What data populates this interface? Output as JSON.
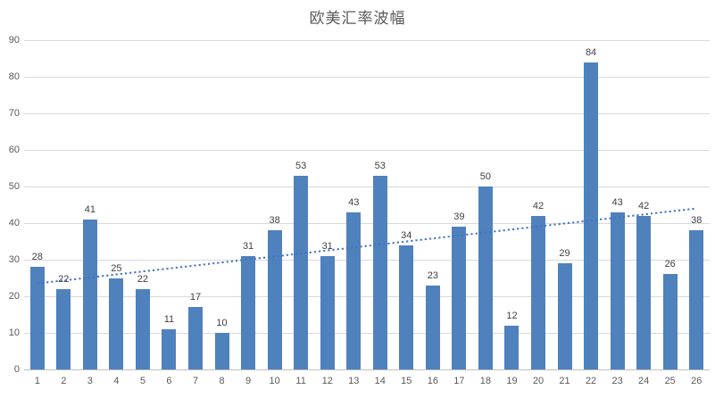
{
  "title": "欧美汇率波幅",
  "colors": {
    "bar": "#4F81BD",
    "trendline": "#4472C4",
    "gridline": "#D9D9D9",
    "axis_line": "#BFBFBF",
    "title_text": "#595959",
    "tick_text": "#595959",
    "value_label_text": "#404040",
    "background": "#FFFFFF"
  },
  "chart_data": {
    "type": "bar",
    "title": "欧美汇率波幅",
    "categories": [
      "1",
      "2",
      "3",
      "4",
      "5",
      "6",
      "7",
      "8",
      "9",
      "10",
      "11",
      "12",
      "13",
      "14",
      "15",
      "16",
      "17",
      "18",
      "19",
      "20",
      "21",
      "22",
      "23",
      "24",
      "25",
      "26"
    ],
    "values": [
      28,
      22,
      41,
      25,
      22,
      11,
      17,
      10,
      31,
      38,
      53,
      31,
      43,
      53,
      34,
      23,
      39,
      50,
      12,
      42,
      29,
      84,
      43,
      42,
      26,
      38
    ],
    "value_labels_shown": true,
    "xlabel": "",
    "ylabel": "",
    "ylim": [
      0,
      90
    ],
    "y_tick_step": 10,
    "y_tick_labels": [
      "0",
      "10",
      "20",
      "30",
      "40",
      "50",
      "60",
      "70",
      "80",
      "90"
    ],
    "grid": "horizontal",
    "legend": "none",
    "trendline": {
      "style": "dotted",
      "start_value": 23.5,
      "end_value": 44
    }
  }
}
